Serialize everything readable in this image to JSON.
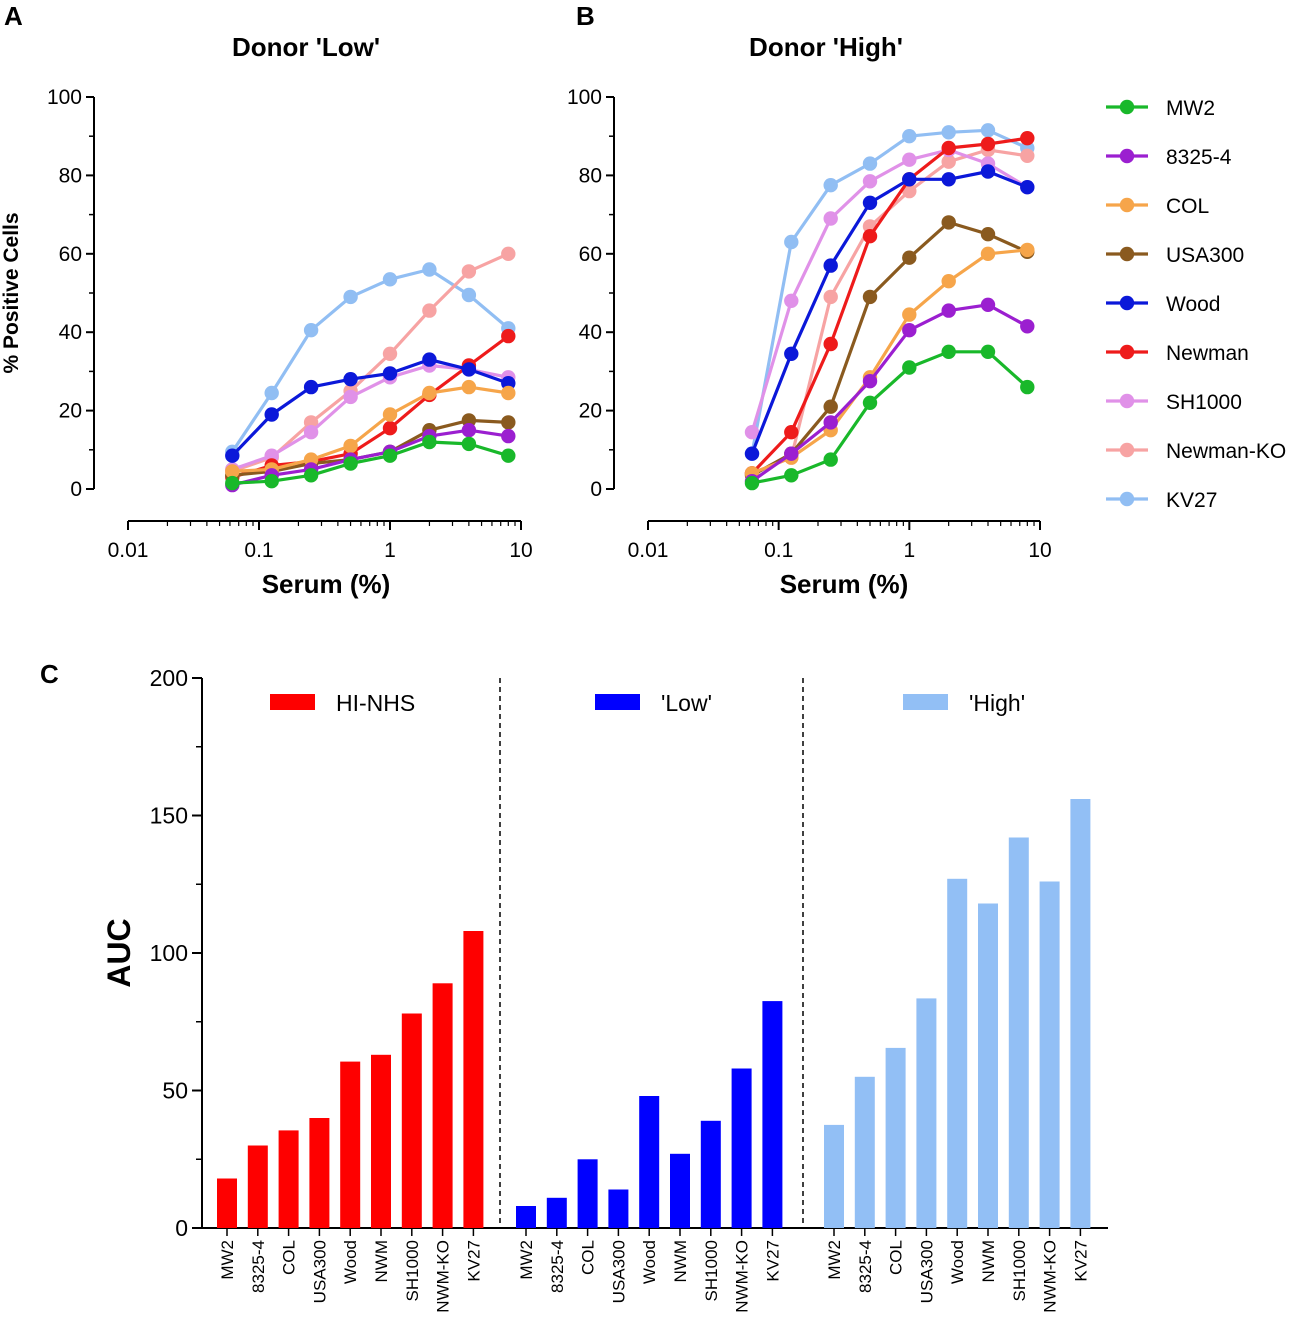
{
  "panel_labels": {
    "a": "A",
    "b": "B",
    "c": "C"
  },
  "chart_data": [
    {
      "type": "line",
      "panel": "A",
      "title": "Donor 'Low'",
      "xlabel": "Serum (%)",
      "ylabel": "% Positive Cells",
      "xscale": "log",
      "xlim": [
        0.01,
        10
      ],
      "ylim": [
        0,
        100
      ],
      "xticks": [
        0.01,
        0.1,
        1,
        10
      ],
      "xtick_labels": [
        "0.01",
        "0.1",
        "1",
        "10"
      ],
      "yticks": [
        0,
        20,
        40,
        60,
        80,
        100
      ],
      "ytick_labels": [
        "0",
        "20",
        "40",
        "60",
        "80",
        "100"
      ],
      "x": [
        0.0625,
        0.125,
        0.25,
        0.5,
        1,
        2,
        4,
        8
      ],
      "series": [
        {
          "name": "KV27",
          "color": "#91bef3",
          "values": [
            9.5,
            24.5,
            40.5,
            49,
            53.5,
            56,
            49.5,
            41
          ]
        },
        {
          "name": "Newman-KO",
          "color": "#f7a3a3",
          "values": [
            4.5,
            8,
            17,
            25,
            34.5,
            45.5,
            55.5,
            60
          ]
        },
        {
          "name": "SH1000",
          "color": "#e091e8",
          "values": [
            5,
            8.5,
            14.5,
            23.5,
            28.5,
            31.5,
            30.5,
            28.5
          ]
        },
        {
          "name": "Newman",
          "color": "#ee1b1b",
          "values": [
            3,
            6,
            7,
            9,
            15.5,
            24,
            31.5,
            39
          ]
        },
        {
          "name": "Wood",
          "color": "#0b18d9",
          "values": [
            8.5,
            19,
            26,
            28,
            29.5,
            33,
            30.5,
            27
          ]
        },
        {
          "name": "USA300",
          "color": "#8a5a1f",
          "values": [
            3.5,
            4.5,
            6.5,
            7.5,
            9.5,
            15,
            17.5,
            17
          ]
        },
        {
          "name": "COL",
          "color": "#f6a54a",
          "values": [
            4.5,
            5,
            7.5,
            11,
            19,
            24.5,
            26,
            24.5
          ]
        },
        {
          "name": "8325-4",
          "color": "#9b1fd0",
          "values": [
            1,
            3.5,
            5,
            7.5,
            9.5,
            13.5,
            15,
            13.5
          ]
        },
        {
          "name": "MW2",
          "color": "#19b82a",
          "values": [
            1.5,
            2,
            3.5,
            6.5,
            8.5,
            12,
            11.5,
            8.5
          ]
        }
      ]
    },
    {
      "type": "line",
      "panel": "B",
      "title": "Donor 'High'",
      "xlabel": "Serum (%)",
      "xscale": "log",
      "xlim": [
        0.01,
        10
      ],
      "ylim": [
        0,
        100
      ],
      "xticks": [
        0.01,
        0.1,
        1,
        10
      ],
      "xtick_labels": [
        "0.01",
        "0.1",
        "1",
        "10"
      ],
      "yticks": [
        0,
        20,
        40,
        60,
        80,
        100
      ],
      "ytick_labels": [
        "0",
        "20",
        "40",
        "60",
        "80",
        "100"
      ],
      "x": [
        0.0625,
        0.125,
        0.25,
        0.5,
        1,
        2,
        4,
        8
      ],
      "series": [
        {
          "name": "KV27",
          "color": "#91bef3",
          "values": [
            9,
            63,
            77.5,
            83,
            90,
            91,
            91.5,
            87
          ]
        },
        {
          "name": "Newman-KO",
          "color": "#f7a3a3",
          "values": [
            4,
            8,
            49,
            67,
            76,
            83.5,
            86.5,
            85
          ]
        },
        {
          "name": "SH1000",
          "color": "#e091e8",
          "values": [
            14.5,
            48,
            69,
            78.5,
            84,
            86.5,
            83,
            77
          ]
        },
        {
          "name": "Newman",
          "color": "#ee1b1b",
          "values": [
            4,
            14.5,
            37,
            64.5,
            79,
            87,
            88,
            89.5
          ]
        },
        {
          "name": "Wood",
          "color": "#0b18d9",
          "values": [
            9,
            34.5,
            57,
            73,
            79,
            79,
            81,
            77
          ]
        },
        {
          "name": "USA300",
          "color": "#8a5a1f",
          "values": [
            3.5,
            9,
            21,
            49,
            59,
            68,
            65,
            60.5
          ]
        },
        {
          "name": "COL",
          "color": "#f6a54a",
          "values": [
            4,
            8,
            15,
            28.5,
            44.5,
            53,
            60,
            61
          ]
        },
        {
          "name": "8325-4",
          "color": "#9b1fd0",
          "values": [
            2,
            9,
            17,
            27.5,
            40.5,
            45.5,
            47,
            41.5
          ]
        },
        {
          "name": "MW2",
          "color": "#19b82a",
          "values": [
            1.5,
            3.5,
            7.5,
            22,
            31,
            35,
            35,
            26
          ]
        }
      ]
    },
    {
      "type": "bar",
      "panel": "C",
      "ylabel": "AUC",
      "ylim": [
        0,
        200
      ],
      "yticks": [
        0,
        50,
        100,
        150,
        200
      ],
      "ytick_labels": [
        "0",
        "50",
        "100",
        "150",
        "200"
      ],
      "categories": [
        "MW2",
        "8325-4",
        "COL",
        "USA300",
        "Wood",
        "NWM",
        "SH1000",
        "NWM-KO",
        "KV27"
      ],
      "series": [
        {
          "name": "HI-NHS",
          "color": "#fe0000",
          "values": [
            18,
            30,
            35.5,
            40,
            60.5,
            63,
            78,
            89,
            108
          ]
        },
        {
          "name": "'Low'",
          "color": "#0000ff",
          "values": [
            8,
            11,
            25,
            14,
            48,
            27,
            39,
            58,
            82.5
          ]
        },
        {
          "name": "'High'",
          "color": "#92bff5",
          "values": [
            37.5,
            55,
            65.5,
            83.5,
            127,
            118,
            142,
            126,
            156
          ]
        }
      ]
    }
  ],
  "legend_order": [
    "MW2",
    "8325-4",
    "COL",
    "USA300",
    "Wood",
    "Newman",
    "SH1000",
    "Newman-KO",
    "KV27"
  ]
}
